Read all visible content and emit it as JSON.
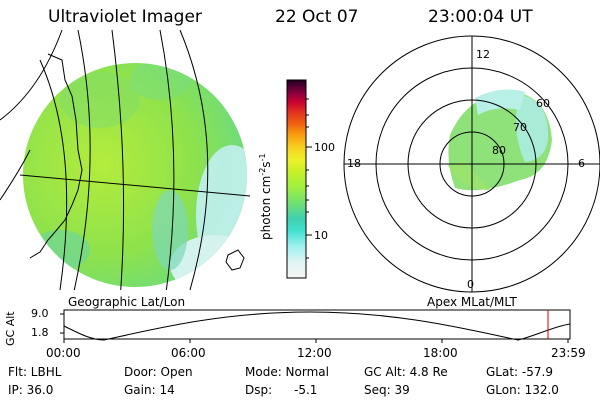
{
  "header": {
    "instrument": "Ultraviolet Imager",
    "date": "22 Oct 07",
    "time": "23:00:04 UT"
  },
  "panels": {
    "geographic_label": "Geographic Lat/Lon",
    "polar_label": "Apex MLat/MLT",
    "mlt_labels": {
      "top": "12",
      "left": "18",
      "right": "6",
      "bottom": "0"
    },
    "mlat_rings": [
      "60",
      "70",
      "80"
    ]
  },
  "colorbar": {
    "unit_label": "photon cm",
    "unit_sup1": "-2",
    "unit_mid": "s",
    "unit_sup2": "-1",
    "tick_100": "100",
    "tick_10": "10",
    "scale": "log",
    "colors": [
      "#f4f4f4",
      "#e0f4f4",
      "#a0f0f0",
      "#40e0d0",
      "#40d0b0",
      "#70e070",
      "#a0f040",
      "#c8f028",
      "#f0f028",
      "#f8d020",
      "#f8a010",
      "#f06010",
      "#e03020",
      "#c80030",
      "#900040",
      "#500030",
      "#200020"
    ]
  },
  "altitude_plot": {
    "ylabel": "GC Alt",
    "y_ticks": [
      "9.0",
      "1.8"
    ],
    "x_ticks": [
      "00:00",
      "06:00",
      "12:00",
      "18:00",
      "23:59"
    ],
    "marker_color": "#e00000"
  },
  "status": {
    "flt": "Flt: LBHL",
    "door": "Door: Open",
    "mode": "Mode: Normal",
    "gc_alt": "GC Alt: 4.8 Re",
    "glat": "GLat: -57.9",
    "ip": "IP: 36.0",
    "gain": "Gain: 14",
    "dsp_label": "Dsp:",
    "dsp_value": "-5.1",
    "seq": "Seq: 39",
    "glon": "GLon: 132.0"
  }
}
